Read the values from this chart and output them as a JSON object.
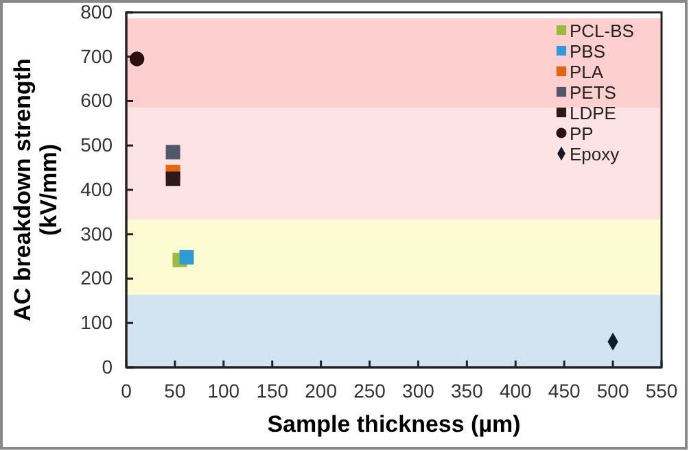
{
  "chart_data": {
    "type": "scatter",
    "xlabel": "Sample thickness (µm)",
    "ylabel": "AC breakdown strength (kV/mm)",
    "xlim": [
      0,
      550
    ],
    "xticks": [
      0,
      50,
      100,
      150,
      200,
      250,
      300,
      350,
      400,
      450,
      500,
      550
    ],
    "ylim": [
      0,
      800
    ],
    "yticks": [
      0,
      100,
      200,
      300,
      400,
      500,
      600,
      700,
      800
    ],
    "legend": "top right",
    "grid": false,
    "bands": [
      {
        "axis": "y",
        "from": 0,
        "to": 164,
        "color": "#d2e3f2"
      },
      {
        "axis": "y",
        "from": 164,
        "to": 333,
        "color": "#fdfbd2"
      },
      {
        "axis": "y",
        "from": 333,
        "to": 585,
        "color": "#fde3e3"
      },
      {
        "axis": "y",
        "from": 585,
        "to": 787,
        "color": "#fdcfcf"
      }
    ],
    "series": [
      {
        "name": "PCL-BS",
        "color": "#9bbb3c",
        "marker": "square",
        "x": [
          55
        ],
        "values": [
          242
        ]
      },
      {
        "name": "PBS",
        "color": "#2e9bd6",
        "marker": "square",
        "x": [
          62
        ],
        "values": [
          248
        ]
      },
      {
        "name": "PLA",
        "color": "#e8650f",
        "marker": "square",
        "x": [
          48
        ],
        "values": [
          440
        ]
      },
      {
        "name": "PETS",
        "color": "#4f5868",
        "marker": "square",
        "x": [
          48
        ],
        "values": [
          485
        ]
      },
      {
        "name": "LDPE",
        "color": "#2b1a17",
        "marker": "square",
        "x": [
          48
        ],
        "values": [
          425
        ]
      },
      {
        "name": "PP",
        "color": "#2b1010",
        "marker": "circle",
        "x": [
          11
        ],
        "values": [
          695
        ]
      },
      {
        "name": "Epoxy",
        "color": "#111a2a",
        "marker": "diamond",
        "x": [
          500
        ],
        "values": [
          58
        ]
      }
    ]
  }
}
